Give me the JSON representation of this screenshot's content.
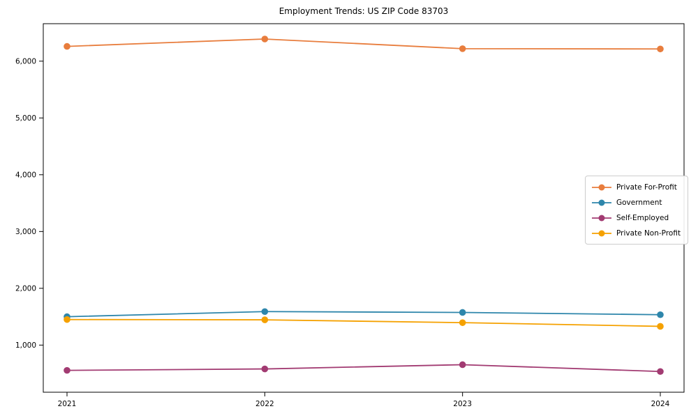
{
  "chart_data": {
    "type": "line",
    "title": "Employment Trends: US ZIP Code 83703",
    "x": [
      2021,
      2022,
      2023,
      2024
    ],
    "x_tick_labels": [
      "2021",
      "2022",
      "2023",
      "2024"
    ],
    "y_ticks": [
      1000,
      2000,
      3000,
      4000,
      5000,
      6000
    ],
    "y_tick_labels": [
      "1,000",
      "2,000",
      "3,000",
      "4,000",
      "5,000",
      "6,000"
    ],
    "ylim": [
      170,
      6660
    ],
    "xlabel": "",
    "ylabel": "",
    "grid": false,
    "legend_position": "center-right",
    "marker": "circle",
    "axis_color": "#000000",
    "background_color": "#ffffff",
    "series": [
      {
        "name": "Private For-Profit",
        "color": "#E87D3D",
        "values": [
          6260,
          6390,
          6220,
          6215
        ]
      },
      {
        "name": "Government",
        "color": "#2E86AB",
        "values": [
          1500,
          1590,
          1575,
          1535
        ]
      },
      {
        "name": "Self-Employed",
        "color": "#A23B72",
        "values": [
          555,
          580,
          655,
          535
        ]
      },
      {
        "name": "Private Non-Profit",
        "color": "#F5A100",
        "values": [
          1450,
          1445,
          1395,
          1330
        ]
      }
    ]
  }
}
